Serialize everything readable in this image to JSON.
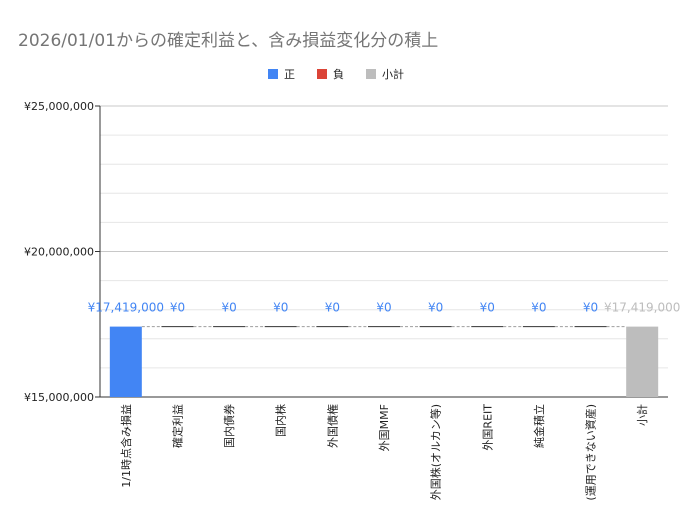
{
  "chart_data": {
    "type": "bar",
    "title": "2026/01/01からの確定利益と、含み損益変化分の積上",
    "legend": {
      "placement": "top-center",
      "items": [
        {
          "label": "正",
          "color": "#4285f4"
        },
        {
          "label": "負",
          "color": "#db4437"
        },
        {
          "label": "小計",
          "color": "#bdbdbd"
        }
      ]
    },
    "ylim": [
      15000000,
      25000000
    ],
    "yticks": [
      {
        "value": 15000000,
        "label": "¥15,000,000"
      },
      {
        "value": 20000000,
        "label": "¥20,000,000"
      },
      {
        "value": 25000000,
        "label": "¥25,000,000"
      }
    ],
    "minor_grid_step": 1000000,
    "grid": true,
    "categories": [
      "1/1時点含み損益",
      "確定利益",
      "国内債券",
      "国内株",
      "外国債権",
      "外国MMF",
      "外国株(オルカン等)",
      "外国REIT",
      "純金積立",
      "(運用できない資産)",
      "小計"
    ],
    "values": [
      17419000,
      0,
      0,
      0,
      0,
      0,
      0,
      0,
      0,
      0,
      17419000
    ],
    "kinds": [
      "positive",
      "positive",
      "positive",
      "positive",
      "positive",
      "positive",
      "positive",
      "positive",
      "positive",
      "positive",
      "subtotal"
    ],
    "data_labels": [
      "¥17,419,000",
      "¥0",
      "¥0",
      "¥0",
      "¥0",
      "¥0",
      "¥0",
      "¥0",
      "¥0",
      "¥0",
      "¥17,419,000"
    ],
    "colors": {
      "positive": "#4285f4",
      "negative": "#db4437",
      "subtotal": "#bdbdbd",
      "positive_label": "#4285f4",
      "subtotal_label": "#bdbdbd"
    }
  }
}
